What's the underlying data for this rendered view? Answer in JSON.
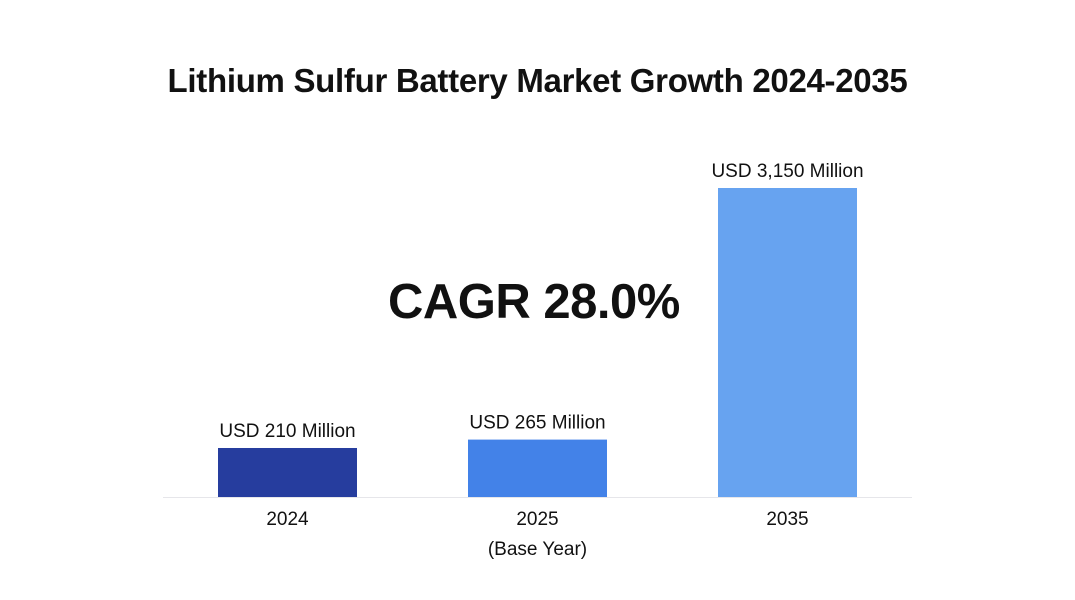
{
  "chart_data": {
    "type": "bar",
    "title": "Lithium Sulfur Battery Market Growth 2024-2035",
    "annotation": "CAGR 28.0%",
    "categories": [
      "2024",
      "2025",
      "2035"
    ],
    "category_sublabels": [
      "",
      "(Base Year)",
      ""
    ],
    "values": [
      210,
      265,
      3150
    ],
    "unit": "USD Million",
    "data_labels": [
      "USD 210 Million",
      "USD 265 Million",
      "USD 3,150 Million"
    ],
    "colors": [
      "#263d9e",
      "#4382e8",
      "#67a3f0"
    ],
    "xlabel": "",
    "ylabel": "",
    "grid": false,
    "legend": "none"
  }
}
